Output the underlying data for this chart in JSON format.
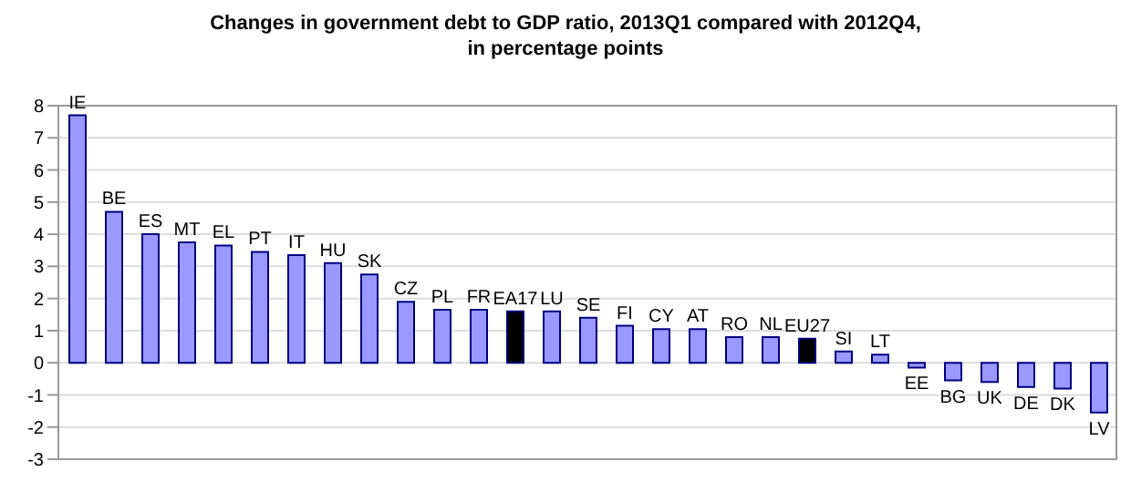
{
  "chart_data": {
    "type": "bar",
    "title": "Changes in government debt to GDP ratio, 2013Q1 compared with 2012Q4,\nin percentage points",
    "categories": [
      "IE",
      "BE",
      "ES",
      "MT",
      "EL",
      "PT",
      "IT",
      "HU",
      "SK",
      "CZ",
      "PL",
      "FR",
      "EA17",
      "LU",
      "SE",
      "FI",
      "CY",
      "AT",
      "RO",
      "NL",
      "EU27",
      "SI",
      "LT",
      "EE",
      "BG",
      "UK",
      "DE",
      "DK",
      "LV"
    ],
    "values": [
      7.7,
      4.7,
      4.0,
      3.75,
      3.65,
      3.45,
      3.35,
      3.1,
      2.75,
      1.9,
      1.65,
      1.65,
      1.6,
      1.6,
      1.4,
      1.15,
      1.05,
      1.05,
      0.8,
      0.8,
      0.75,
      0.35,
      0.25,
      -0.15,
      -0.55,
      -0.6,
      -0.75,
      -0.8,
      -1.55
    ],
    "colors": [
      "#9999ff",
      "#9999ff",
      "#9999ff",
      "#9999ff",
      "#9999ff",
      "#9999ff",
      "#9999ff",
      "#9999ff",
      "#9999ff",
      "#9999ff",
      "#9999ff",
      "#9999ff",
      "#000000",
      "#9999ff",
      "#9999ff",
      "#9999ff",
      "#9999ff",
      "#9999ff",
      "#9999ff",
      "#9999ff",
      "#000000",
      "#9999ff",
      "#9999ff",
      "#9999ff",
      "#9999ff",
      "#9999ff",
      "#9999ff",
      "#9999ff",
      "#9999ff"
    ],
    "ylim": [
      -3,
      8
    ],
    "yticks": [
      -3,
      -2,
      -1,
      0,
      1,
      2,
      3,
      4,
      5,
      6,
      7,
      8
    ],
    "grid": "y"
  }
}
